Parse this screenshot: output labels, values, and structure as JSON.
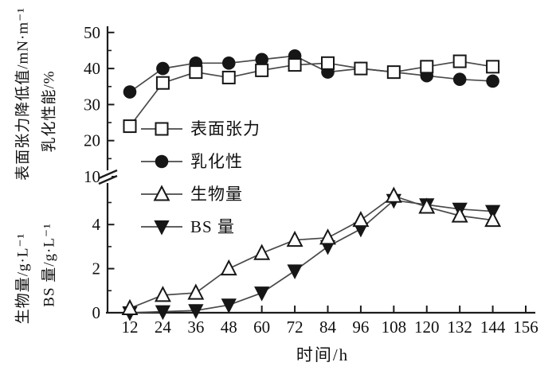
{
  "chart_data": {
    "type": "line",
    "title": "",
    "xlabel": "时间/h",
    "x": [
      12,
      24,
      36,
      48,
      60,
      72,
      84,
      96,
      108,
      120,
      132,
      144
    ],
    "x_ticks": [
      12,
      24,
      36,
      48,
      60,
      72,
      84,
      96,
      108,
      120,
      132,
      144,
      156
    ],
    "y_axis_labels": {
      "outer_top": "表面张力降低值/mN·m⁻¹",
      "outer_bottom": "生物量/g·L⁻¹",
      "inner_top": "乳化性能/%",
      "inner_bottom": "BS 量/g·L⁻¹"
    },
    "upper_axis": {
      "ticks": [
        10,
        20,
        30,
        40,
        50
      ],
      "minor_ticks": [
        15,
        25,
        35,
        45
      ],
      "range": [
        10,
        50
      ]
    },
    "lower_axis": {
      "ticks": [
        0,
        2,
        4
      ],
      "minor_ticks": [
        1,
        3,
        5
      ],
      "range": [
        0,
        6
      ]
    },
    "axis_break": true,
    "grid": false,
    "legend_position": "inside-upper-left",
    "series": [
      {
        "name": "surface-tension",
        "label": "表面张力",
        "marker": "square-open",
        "axis": "upper",
        "values": [
          24,
          36,
          39,
          37.5,
          39.5,
          41,
          41.5,
          40,
          39,
          40.5,
          42,
          40.5
        ]
      },
      {
        "name": "emulsification",
        "label": "乳化性",
        "marker": "circle-filled",
        "axis": "upper",
        "values": [
          33.5,
          40,
          41.5,
          41.5,
          42.5,
          43.5,
          39,
          40,
          39,
          38,
          37,
          36.5
        ]
      },
      {
        "name": "biomass",
        "label": "生物量",
        "marker": "triangle-up-open",
        "axis": "lower",
        "values": [
          0.2,
          0.8,
          0.9,
          2.0,
          2.7,
          3.3,
          3.4,
          4.2,
          5.3,
          4.8,
          4.4,
          4.2
        ]
      },
      {
        "name": "bs-amount",
        "label": "BS 量",
        "marker": "triangle-down-filled",
        "axis": "lower",
        "values": [
          0,
          0.05,
          0.1,
          0.35,
          0.9,
          1.9,
          3.0,
          3.8,
          5.1,
          4.9,
          4.7,
          4.6
        ]
      }
    ],
    "colors": {
      "line": "#4a4a4a",
      "marker": "#161616",
      "axis": "#1c1c1c",
      "text": "#111111",
      "background": "#ffffff"
    }
  }
}
